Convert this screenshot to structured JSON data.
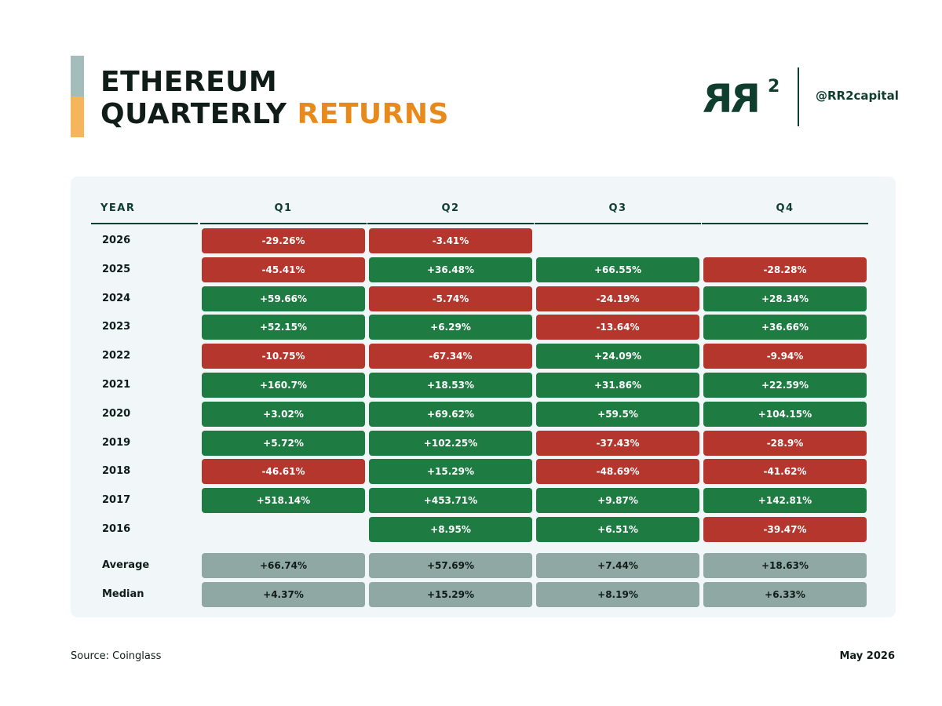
{
  "title": {
    "line1": "ETHEREUM",
    "line2_part1": "QUARTERLY",
    "line2_part2": "RETURNS"
  },
  "brand": {
    "logo_letters": "RR",
    "logo_sup": "2",
    "handle": "@RR2capital"
  },
  "footer": {
    "source": "Source: Coinglass",
    "date": "May 2026"
  },
  "colors": {
    "positive": "#1e7b42",
    "negative": "#b5362c",
    "stat": "#8fa8a3",
    "panel": "#f1f6f9",
    "dark_green": "#0f3d2e",
    "text_dark": "#0f1c17",
    "accent_gray": "#a4bcba",
    "accent_orange": "#f5b55a",
    "returns_orange": "#e8891c"
  },
  "chart_data": {
    "type": "table",
    "title": "ETHEREUM QUARTERLY RETURNS",
    "columns": [
      "YEAR",
      "Q1",
      "Q2",
      "Q3",
      "Q4"
    ],
    "rows": [
      {
        "year": "2026",
        "values": [
          "-29.26%",
          "-3.41%",
          "",
          ""
        ]
      },
      {
        "year": "2025",
        "values": [
          "-45.41%",
          "+36.48%",
          "+66.55%",
          "-28.28%"
        ]
      },
      {
        "year": "2024",
        "values": [
          "+59.66%",
          "-5.74%",
          "-24.19%",
          "+28.34%"
        ]
      },
      {
        "year": "2023",
        "values": [
          "+52.15%",
          "+6.29%",
          "-13.64%",
          "+36.66%"
        ]
      },
      {
        "year": "2022",
        "values": [
          "-10.75%",
          "-67.34%",
          "+24.09%",
          "-9.94%"
        ]
      },
      {
        "year": "2021",
        "values": [
          "+160.7%",
          "+18.53%",
          "+31.86%",
          "+22.59%"
        ]
      },
      {
        "year": "2020",
        "values": [
          "+3.02%",
          "+69.62%",
          "+59.5%",
          "+104.15%"
        ]
      },
      {
        "year": "2019",
        "values": [
          "+5.72%",
          "+102.25%",
          "-37.43%",
          "-28.9%"
        ]
      },
      {
        "year": "2018",
        "values": [
          "-46.61%",
          "+15.29%",
          "-48.69%",
          "-41.62%"
        ]
      },
      {
        "year": "2017",
        "values": [
          "+518.14%",
          "+453.71%",
          "+9.87%",
          "+142.81%"
        ]
      },
      {
        "year": "2016",
        "values": [
          "",
          "+8.95%",
          "+6.51%",
          "-39.47%"
        ]
      }
    ],
    "summary": [
      {
        "label": "Average",
        "values": [
          "+66.74%",
          "+57.69%",
          "+7.44%",
          "+18.63%"
        ]
      },
      {
        "label": "Median",
        "values": [
          "+4.37%",
          "+15.29%",
          "+8.19%",
          "+6.33%"
        ]
      }
    ]
  }
}
